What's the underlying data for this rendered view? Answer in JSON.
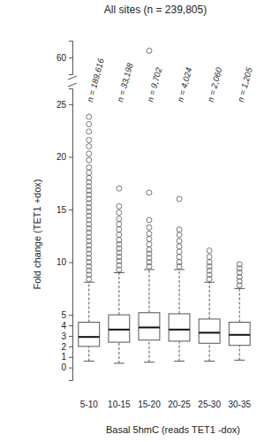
{
  "chart_data": [
    {
      "type": "box",
      "title": "All sites (n = 239,805)",
      "ylim": [
        55,
        65
      ],
      "yticks": [
        60
      ],
      "tick_labels": "y",
      "outliers": [
        [],
        [],
        [
          62
        ],
        [],
        [],
        []
      ]
    },
    {
      "type": "box",
      "x_label": "Basal 5hmC (reads TET1 -dox)",
      "y_label": "Fold change (TET1 +dox)",
      "categories": [
        "5-10",
        "10-15",
        "15-20",
        "20-25",
        "25-30",
        "30-35"
      ],
      "annotations": [
        "n = 189,616",
        "n = 33,198",
        "n = 9,702",
        "n = 4,024",
        "n = 2,060",
        "n = 1,205"
      ],
      "ylim": [
        -1.2,
        26.5
      ],
      "yticks": [
        0,
        1,
        2,
        3,
        4,
        5,
        10,
        15,
        20,
        25
      ],
      "whisker_low": [
        0.6,
        0.4,
        0.5,
        0.6,
        0.6,
        0.7
      ],
      "q1": [
        2.0,
        2.4,
        2.6,
        2.5,
        2.3,
        2.1
      ],
      "median": [
        2.9,
        3.6,
        3.8,
        3.6,
        3.3,
        3.1
      ],
      "q3": [
        4.3,
        5.0,
        5.2,
        5.1,
        4.6,
        4.3
      ],
      "whisker_high": [
        8.1,
        9.0,
        9.3,
        9.3,
        8.1,
        7.5
      ],
      "outliers": [
        [
          8.4,
          8.8,
          9.2,
          9.6,
          10.0,
          10.4,
          10.8,
          11.2,
          11.6,
          12.0,
          12.4,
          12.8,
          13.2,
          13.6,
          14.0,
          14.4,
          14.8,
          15.2,
          15.6,
          16.0,
          16.4,
          16.8,
          17.2,
          17.6,
          18.0,
          18.5,
          19.0,
          19.7,
          20.3,
          21.0,
          21.6,
          22.4,
          23.1,
          23.8
        ],
        [
          9.3,
          9.7,
          10.1,
          10.5,
          10.9,
          11.3,
          11.7,
          12.1,
          12.6,
          13.1,
          13.6,
          14.1,
          14.7,
          15.3,
          17.0
        ],
        [
          9.6,
          10.0,
          10.4,
          10.8,
          11.2,
          11.7,
          12.2,
          12.7,
          13.3,
          14.0,
          16.6
        ],
        [
          9.6,
          10.0,
          10.5,
          11.0,
          11.5,
          12.0,
          12.6,
          13.1,
          16.0
        ],
        [
          8.4,
          8.8,
          9.2,
          9.6,
          10.0,
          10.5,
          11.1
        ],
        [
          7.8,
          8.2,
          8.6,
          9.0,
          9.4,
          9.8
        ]
      ]
    }
  ]
}
